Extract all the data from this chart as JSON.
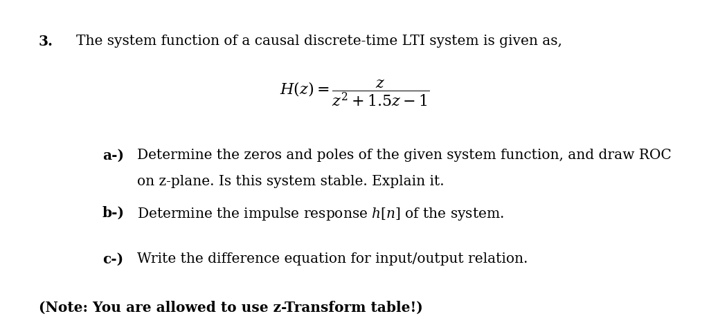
{
  "background_color": "#ffffff",
  "question_number": "3.",
  "intro_text": "The system function of a causal discrete-time LTI system is given as,",
  "part_a_label": "a-)",
  "part_a_line1": "Determine the zeros and poles of the given system function, and draw ROC",
  "part_a_line2": "on z-plane. Is this system stable. Explain it.",
  "part_b_label": "b-)",
  "part_b_text": "Determine the impulse response $h[n]$ of the system.",
  "part_c_label": "c-)",
  "part_c_text": "Write the difference equation for input/output relation.",
  "note_text": "(Note: You are allowed to use z-Transform table!)",
  "formula": "$H(z) = \\dfrac{z}{z^{2} + 1.5z - 1}$",
  "font_size_main": 14.5,
  "font_size_formula": 16,
  "font_size_note": 14.5,
  "text_color": "#000000",
  "fig_width": 10.24,
  "fig_height": 4.7
}
